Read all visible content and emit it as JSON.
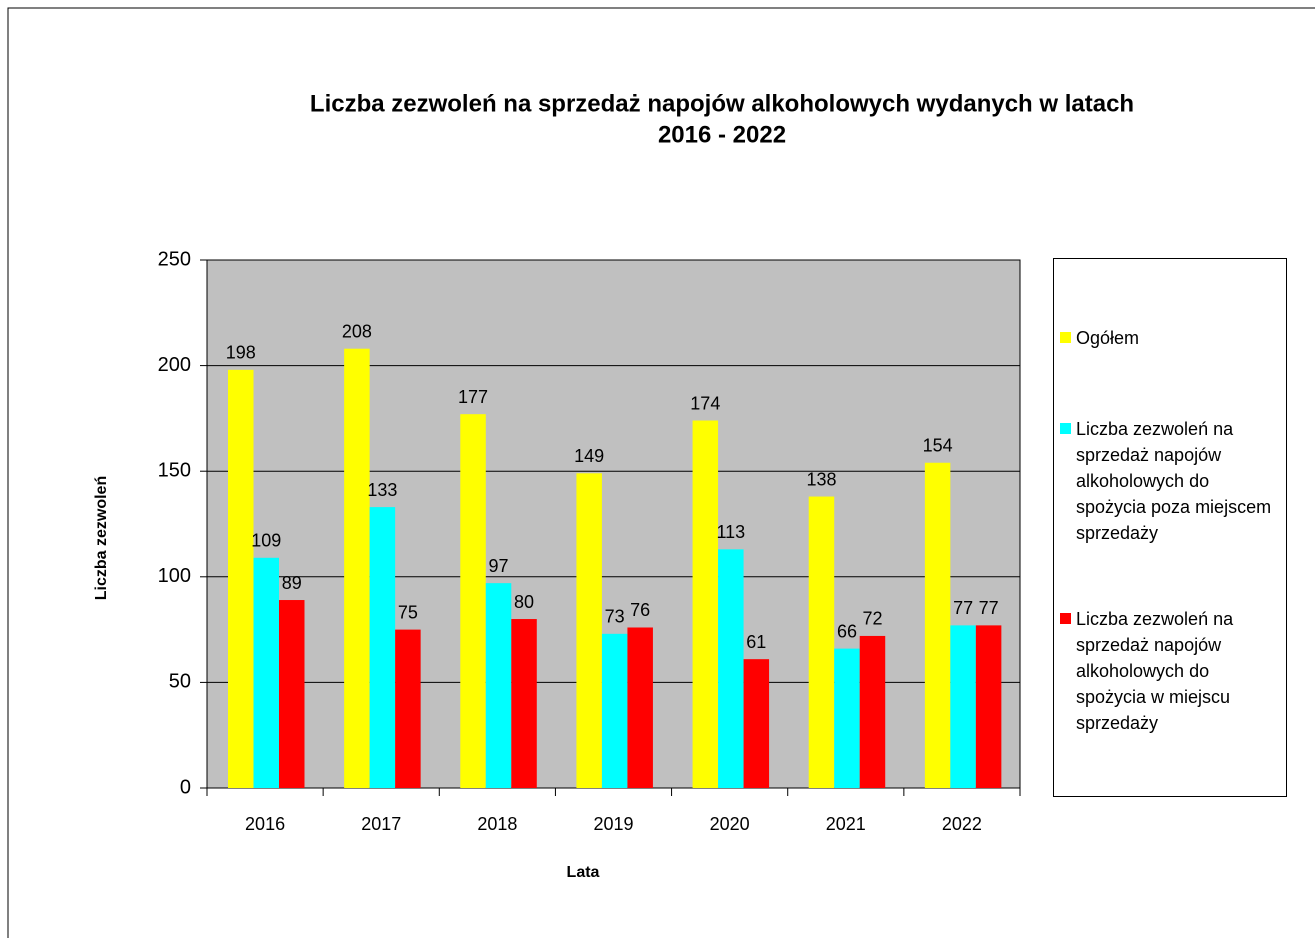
{
  "chart_data": {
    "type": "bar",
    "title": [
      "Liczba zezwoleń na sprzedaż napojów alkoholowych wydanych w latach",
      "2016 - 2022"
    ],
    "x_label": "Lata",
    "y_label": "Liczba zezwoleń",
    "categories": [
      "2016",
      "2017",
      "2018",
      "2019",
      "2020",
      "2021",
      "2022"
    ],
    "series": [
      {
        "name": "Ogółem",
        "color": "#ffff00",
        "values": [
          198,
          208,
          177,
          149,
          174,
          138,
          154
        ]
      },
      {
        "name": "Liczba zezwoleń na sprzedaż napojów alkoholowych do spożycia poza miejscem sprzedaży",
        "color": "#00ffff",
        "values": [
          109,
          133,
          97,
          73,
          113,
          66,
          77
        ]
      },
      {
        "name": "Liczba zezwoleń na sprzedaż napojów alkoholowych do spożycia w miejscu sprzedaży",
        "color": "#ff0000",
        "values": [
          89,
          75,
          80,
          76,
          61,
          72,
          77
        ]
      }
    ],
    "ylim": [
      0,
      250
    ],
    "yticks": [
      0,
      50,
      100,
      150,
      200,
      250
    ],
    "grid": true,
    "legend": "right"
  }
}
